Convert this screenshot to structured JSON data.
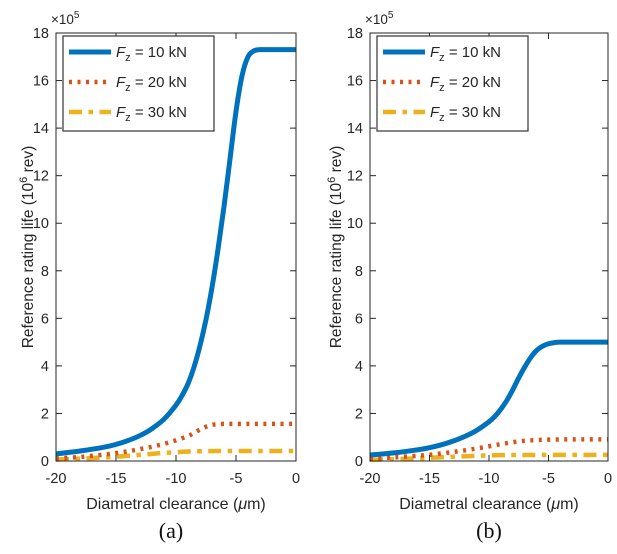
{
  "figure": {
    "background": "#ffffff",
    "axis_color": "#262626",
    "text_color": "#262626"
  },
  "chart_data": [
    {
      "type": "line",
      "caption": "(a)",
      "title": "",
      "xlabel": "Diametral clearance (μm)",
      "xlabel_parts": {
        "pre": "Diametral clearance (",
        "mu": "μ",
        "post": "m)"
      },
      "ylabel": "Reference rating life (10^6 rev)",
      "ylabel_parts": {
        "pre": "Reference rating life (10",
        "sup": "6",
        "post": " rev)"
      },
      "y_multiplier": {
        "text": "×10",
        "sup": "5"
      },
      "xlim": [
        -20,
        0
      ],
      "ylim": [
        0,
        18
      ],
      "xticks": [
        -20,
        -15,
        -10,
        -5,
        0
      ],
      "yticks": [
        0,
        2,
        4,
        6,
        8,
        10,
        12,
        14,
        16,
        18
      ],
      "grid": false,
      "legend_position": "top-left",
      "series": [
        {
          "name": "F_z = 10 kN",
          "legend_parts": {
            "var": "F",
            "sub": "z",
            "rest": " = 10 kN"
          },
          "color": "#0072BD",
          "style": "solid",
          "points": [
            [
              -20,
              0.3
            ],
            [
              -18,
              0.42
            ],
            [
              -16,
              0.58
            ],
            [
              -15,
              0.7
            ],
            [
              -14,
              0.86
            ],
            [
              -13,
              1.07
            ],
            [
              -12,
              1.36
            ],
            [
              -11,
              1.76
            ],
            [
              -10,
              2.35
            ],
            [
              -9.5,
              2.75
            ],
            [
              -9,
              3.25
            ],
            [
              -8.5,
              3.95
            ],
            [
              -8,
              4.85
            ],
            [
              -7.5,
              5.95
            ],
            [
              -7,
              7.3
            ],
            [
              -6.5,
              8.9
            ],
            [
              -6,
              10.7
            ],
            [
              -5.5,
              12.7
            ],
            [
              -5,
              14.7
            ],
            [
              -4.5,
              16.2
            ],
            [
              -4,
              17.0
            ],
            [
              -3.5,
              17.25
            ],
            [
              -3,
              17.3
            ],
            [
              -2,
              17.3
            ],
            [
              0,
              17.3
            ]
          ]
        },
        {
          "name": "F_z = 20 kN",
          "legend_parts": {
            "var": "F",
            "sub": "z",
            "rest": " = 20 kN"
          },
          "color": "#D95319",
          "style": "dotted",
          "points": [
            [
              -20,
              0.1
            ],
            [
              -18,
              0.17
            ],
            [
              -16,
              0.27
            ],
            [
              -15,
              0.33
            ],
            [
              -14,
              0.41
            ],
            [
              -13,
              0.5
            ],
            [
              -12,
              0.6
            ],
            [
              -11,
              0.72
            ],
            [
              -10,
              0.87
            ],
            [
              -9,
              1.05
            ],
            [
              -8.5,
              1.18
            ],
            [
              -8,
              1.32
            ],
            [
              -7.5,
              1.44
            ],
            [
              -7,
              1.52
            ],
            [
              -6.5,
              1.55
            ],
            [
              -6,
              1.56
            ],
            [
              -4,
              1.56
            ],
            [
              0,
              1.56
            ]
          ]
        },
        {
          "name": "F_z = 30 kN",
          "legend_parts": {
            "var": "F",
            "sub": "z",
            "rest": " = 30 kN"
          },
          "color": "#EDB120",
          "style": "dashdot",
          "points": [
            [
              -20,
              0.06
            ],
            [
              -18,
              0.1
            ],
            [
              -16,
              0.15
            ],
            [
              -15,
              0.18
            ],
            [
              -14,
              0.22
            ],
            [
              -13,
              0.26
            ],
            [
              -12,
              0.3
            ],
            [
              -11,
              0.34
            ],
            [
              -10,
              0.37
            ],
            [
              -9,
              0.4
            ],
            [
              -8,
              0.41
            ],
            [
              -6,
              0.42
            ],
            [
              0,
              0.42
            ]
          ]
        }
      ]
    },
    {
      "type": "line",
      "caption": "(b)",
      "title": "",
      "xlabel": "Diametral clearance (μm)",
      "xlabel_parts": {
        "pre": "Diametral clearance (",
        "mu": "μ",
        "post": "m)"
      },
      "ylabel": "Reference rating life (10^6 rev)",
      "ylabel_parts": {
        "pre": "Reference rating life (10",
        "sup": "6",
        "post": " rev)"
      },
      "y_multiplier": {
        "text": "×10",
        "sup": "5"
      },
      "xlim": [
        -20,
        0
      ],
      "ylim": [
        0,
        18
      ],
      "xticks": [
        -20,
        -15,
        -10,
        -5,
        0
      ],
      "yticks": [
        0,
        2,
        4,
        6,
        8,
        10,
        12,
        14,
        16,
        18
      ],
      "grid": false,
      "legend_position": "top-left",
      "series": [
        {
          "name": "F_z = 10 kN",
          "legend_parts": {
            "var": "F",
            "sub": "z",
            "rest": " = 10 kN"
          },
          "color": "#0072BD",
          "style": "solid",
          "points": [
            [
              -20,
              0.25
            ],
            [
              -18,
              0.34
            ],
            [
              -16,
              0.47
            ],
            [
              -15,
              0.56
            ],
            [
              -14,
              0.68
            ],
            [
              -13,
              0.84
            ],
            [
              -12,
              1.04
            ],
            [
              -11,
              1.3
            ],
            [
              -10,
              1.65
            ],
            [
              -9.5,
              1.88
            ],
            [
              -9,
              2.18
            ],
            [
              -8.5,
              2.55
            ],
            [
              -8,
              3.0
            ],
            [
              -7.5,
              3.5
            ],
            [
              -7,
              3.95
            ],
            [
              -6.5,
              4.35
            ],
            [
              -6,
              4.65
            ],
            [
              -5.5,
              4.83
            ],
            [
              -5,
              4.93
            ],
            [
              -4.5,
              4.98
            ],
            [
              -4,
              5.0
            ],
            [
              -2,
              5.0
            ],
            [
              0,
              5.0
            ]
          ]
        },
        {
          "name": "F_z = 20 kN",
          "legend_parts": {
            "var": "F",
            "sub": "z",
            "rest": " = 20 kN"
          },
          "color": "#D95319",
          "style": "dotted",
          "points": [
            [
              -20,
              0.1
            ],
            [
              -18,
              0.15
            ],
            [
              -16,
              0.22
            ],
            [
              -15,
              0.26
            ],
            [
              -14,
              0.32
            ],
            [
              -13,
              0.38
            ],
            [
              -12,
              0.45
            ],
            [
              -11,
              0.53
            ],
            [
              -10,
              0.62
            ],
            [
              -9,
              0.71
            ],
            [
              -8,
              0.79
            ],
            [
              -7,
              0.85
            ],
            [
              -6,
              0.88
            ],
            [
              -5,
              0.9
            ],
            [
              -3,
              0.91
            ],
            [
              0,
              0.91
            ]
          ]
        },
        {
          "name": "F_z = 30 kN",
          "legend_parts": {
            "var": "F",
            "sub": "z",
            "rest": " = 30 kN"
          },
          "color": "#EDB120",
          "style": "dashdot",
          "points": [
            [
              -20,
              0.05
            ],
            [
              -18,
              0.08
            ],
            [
              -16,
              0.11
            ],
            [
              -15,
              0.13
            ],
            [
              -14,
              0.16
            ],
            [
              -13,
              0.18
            ],
            [
              -12,
              0.2
            ],
            [
              -11,
              0.22
            ],
            [
              -10,
              0.235
            ],
            [
              -9,
              0.245
            ],
            [
              -8,
              0.25
            ],
            [
              -6,
              0.255
            ],
            [
              0,
              0.255
            ]
          ]
        }
      ]
    }
  ]
}
